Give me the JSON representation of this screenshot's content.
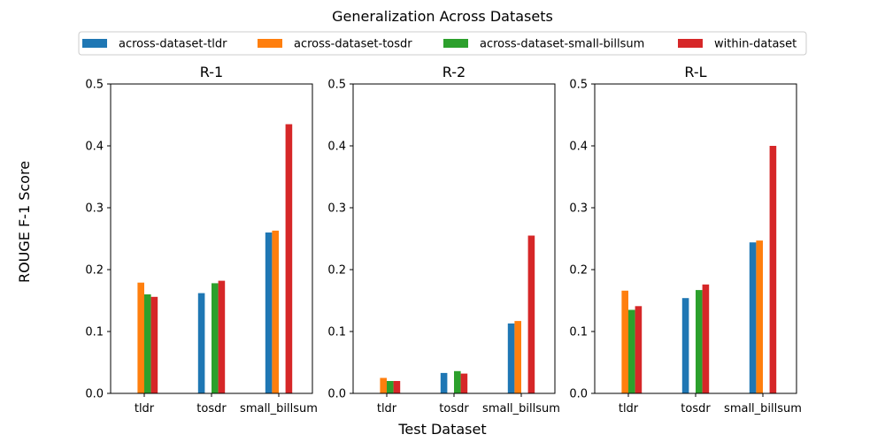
{
  "figure": {
    "suptitle": "Generalization Across Datasets",
    "xlabel": "Test Dataset",
    "ylabel": "ROUGE F-1 Score"
  },
  "chart_data": {
    "type": "bar",
    "title": "Generalization Across Datasets",
    "xlabel": "Test Dataset",
    "ylabel": "ROUGE F-1 Score",
    "ylim": [
      0,
      0.5
    ],
    "yticks": [
      "0.0",
      "0.1",
      "0.2",
      "0.3",
      "0.4",
      "0.5"
    ],
    "categories": [
      "tldr",
      "tosdr",
      "small_billsum"
    ],
    "legend_position": "top-center",
    "series_meta": [
      {
        "name": "across-dataset-tldr",
        "color": "#1f77b4"
      },
      {
        "name": "across-dataset-tosdr",
        "color": "#ff7f0e"
      },
      {
        "name": "across-dataset-small-billsum",
        "color": "#2ca02c"
      },
      {
        "name": "within-dataset",
        "color": "#d62728"
      }
    ],
    "panels": [
      {
        "title": "R-1",
        "series": [
          {
            "name": "across-dataset-tldr",
            "values": [
              null,
              0.162,
              0.26
            ]
          },
          {
            "name": "across-dataset-tosdr",
            "values": [
              0.179,
              null,
              0.263
            ]
          },
          {
            "name": "across-dataset-small-billsum",
            "values": [
              0.16,
              0.178,
              null
            ]
          },
          {
            "name": "within-dataset",
            "values": [
              0.156,
              0.182,
              0.435
            ]
          }
        ]
      },
      {
        "title": "R-2",
        "series": [
          {
            "name": "across-dataset-tldr",
            "values": [
              null,
              0.033,
              0.113
            ]
          },
          {
            "name": "across-dataset-tosdr",
            "values": [
              0.025,
              null,
              0.117
            ]
          },
          {
            "name": "across-dataset-small-billsum",
            "values": [
              0.02,
              0.036,
              null
            ]
          },
          {
            "name": "within-dataset",
            "values": [
              0.02,
              0.032,
              0.255
            ]
          }
        ]
      },
      {
        "title": "R-L",
        "series": [
          {
            "name": "across-dataset-tldr",
            "values": [
              null,
              0.154,
              0.244
            ]
          },
          {
            "name": "across-dataset-tosdr",
            "values": [
              0.166,
              null,
              0.247
            ]
          },
          {
            "name": "across-dataset-small-billsum",
            "values": [
              0.135,
              0.167,
              null
            ]
          },
          {
            "name": "within-dataset",
            "values": [
              0.141,
              0.176,
              0.4
            ]
          }
        ]
      }
    ]
  }
}
